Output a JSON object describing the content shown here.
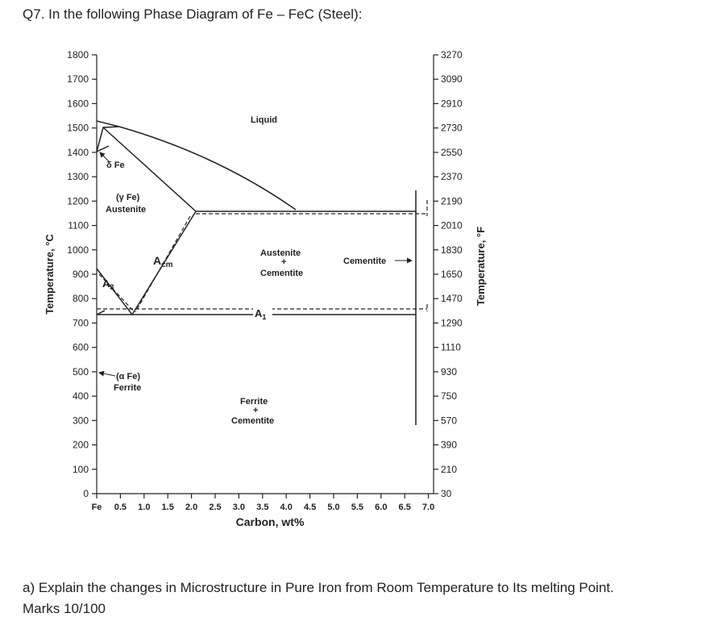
{
  "question": {
    "title": "Q7. In the following Phase Diagram of Fe – FeC (Steel):"
  },
  "diagram": {
    "y_axis_left": {
      "label": "Temperature, °C",
      "ticks": [
        "1800",
        "1700",
        "1600",
        "1500",
        "1400",
        "1300",
        "1200",
        "1100",
        "1000",
        "900",
        "800",
        "700",
        "600",
        "500",
        "400",
        "300",
        "200",
        "100",
        "0"
      ]
    },
    "y_axis_right": {
      "label": "Temperature, °F",
      "ticks": [
        "3270",
        "3090",
        "2910",
        "2730",
        "2550",
        "2370",
        "2190",
        "2010",
        "1830",
        "1650",
        "1470",
        "1290",
        "1110",
        "930",
        "750",
        "570",
        "390",
        "210",
        "30"
      ]
    },
    "x_axis": {
      "label": "Carbon, wt%",
      "ticks": [
        "Fe",
        "0.5",
        "1.0",
        "1.5",
        "2.0",
        "2.5",
        "3.0",
        "3.5",
        "4.0",
        "4.5",
        "5.0",
        "5.5",
        "6.0",
        "6.5",
        "7.0"
      ]
    },
    "regions": {
      "liquid": "Liquid",
      "delta_fe": "δ Fe",
      "gamma_fe": "(γ Fe)",
      "austenite": "Austenite",
      "acm": "A",
      "acm_sub": "cm",
      "austenite_cementite_1": "Austenite",
      "austenite_cementite_plus": "+",
      "austenite_cementite_2": "Cementite",
      "cementite": "Cementite",
      "a3": "A",
      "a3_sub": "3",
      "a1": "A",
      "a1_sub": "1",
      "alpha_fe": "(α Fe)",
      "ferrite": "Ferrite",
      "ferrite_cementite_1": "Ferrite",
      "ferrite_cementite_plus": "+",
      "ferrite_cementite_2": "Cementite"
    }
  },
  "answer": {
    "part_a": "a) Explain the changes in Microstructure in Pure Iron from Room Temperature to Its melting Point.",
    "marks": "Marks 10/100"
  }
}
